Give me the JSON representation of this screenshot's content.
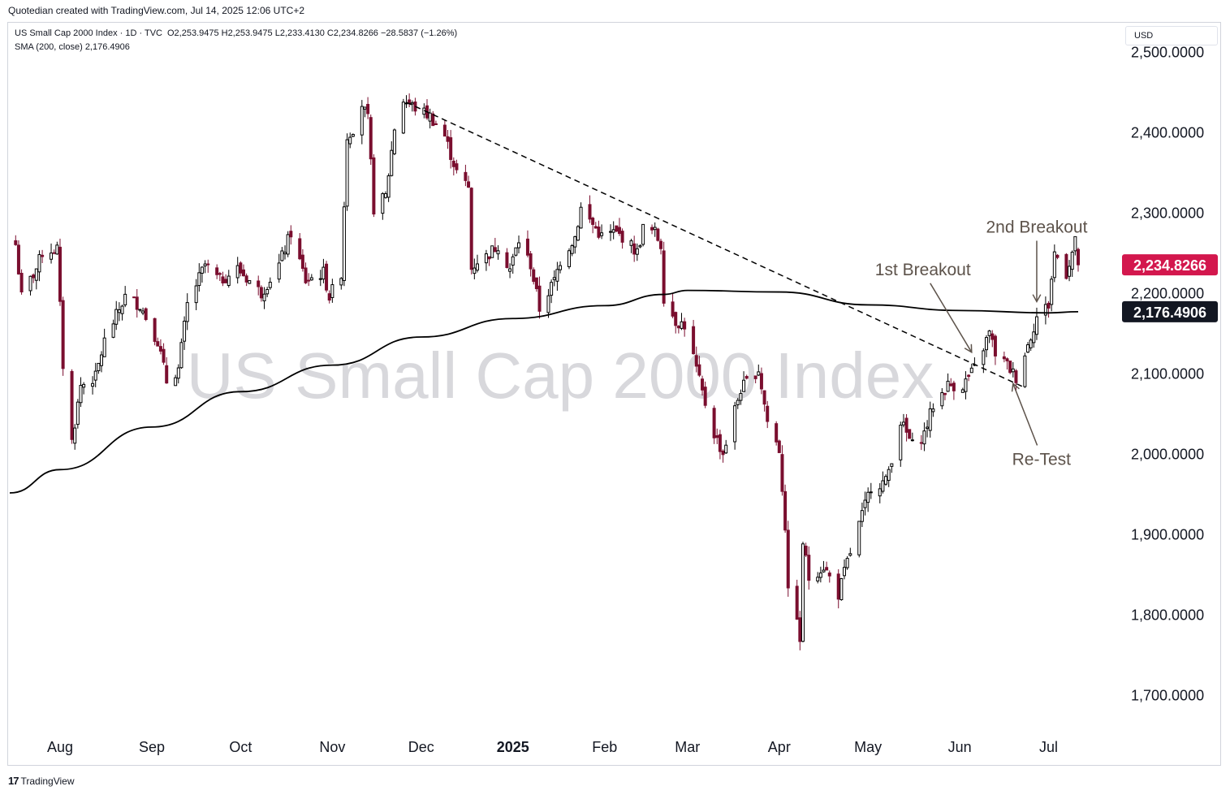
{
  "header": {
    "credit": "Quotedian created with TradingView.com, Jul 14, 2025 12:06 UTC+2"
  },
  "legend": {
    "symbol": "US Small Cap 2000 Index · 1D · TVC",
    "ohlc": "O2,253.9475 H2,253.9475 L2,233.4130 C2,234.8266 −28.5837 (−1.26%)",
    "sma": "SMA (200, close) 2,176.4906"
  },
  "currency": "USD",
  "footer": {
    "logo_mark": "17",
    "logo_text": "TradingView"
  },
  "colors": {
    "bull": "#000000",
    "bear": "#7a0e2f",
    "price_label": "#d3174d",
    "sma_label": "#131722",
    "annotation": "#5d534b",
    "watermark": "#d8d8dc"
  },
  "chart_data": {
    "type": "candlestick",
    "title": "US Small Cap 2000 Index",
    "watermark": "US Small Cap 2000 Index",
    "ylim": [
      1655,
      2535
    ],
    "y_ticks": [
      "2,500.0000",
      "2,400.0000",
      "2,300.0000",
      "2,200.0000",
      "2,100.0000",
      "2,000.0000",
      "1,900.0000",
      "1,800.0000",
      "1,700.0000"
    ],
    "y_tick_values": [
      2500,
      2400,
      2300,
      2200,
      2100,
      2000,
      1900,
      1800,
      1700
    ],
    "x_ticks": [
      "Aug",
      "Sep",
      "Oct",
      "Nov",
      "Dec",
      "2025",
      "Feb",
      "Mar",
      "Apr",
      "May",
      "Jun",
      "Jul"
    ],
    "x_tick_dates": [
      "2024-08-01",
      "2024-09-01",
      "2024-10-01",
      "2024-11-01",
      "2024-12-01",
      "2025-01-01",
      "2025-02-01",
      "2025-03-01",
      "2025-04-01",
      "2025-05-01",
      "2025-06-01",
      "2025-07-01"
    ],
    "close_anchors": [
      [
        "2024-07-17",
        2260
      ],
      [
        "2024-07-19",
        2195
      ],
      [
        "2024-07-24",
        2230
      ],
      [
        "2024-07-26",
        2250
      ],
      [
        "2024-07-31",
        2255
      ],
      [
        "2024-08-02",
        2110
      ],
      [
        "2024-08-05",
        2015
      ],
      [
        "2024-08-08",
        2085
      ],
      [
        "2024-08-13",
        2095
      ],
      [
        "2024-08-16",
        2140
      ],
      [
        "2024-08-23",
        2195
      ],
      [
        "2024-08-28",
        2185
      ],
      [
        "2024-09-03",
        2140
      ],
      [
        "2024-09-06",
        2090
      ],
      [
        "2024-09-10",
        2105
      ],
      [
        "2024-09-13",
        2185
      ],
      [
        "2024-09-19",
        2235
      ],
      [
        "2024-09-24",
        2215
      ],
      [
        "2024-09-30",
        2230
      ],
      [
        "2024-10-04",
        2215
      ],
      [
        "2024-10-08",
        2200
      ],
      [
        "2024-10-14",
        2235
      ],
      [
        "2024-10-18",
        2275
      ],
      [
        "2024-10-23",
        2215
      ],
      [
        "2024-10-29",
        2225
      ],
      [
        "2024-10-31",
        2195
      ],
      [
        "2024-11-04",
        2225
      ],
      [
        "2024-11-06",
        2395
      ],
      [
        "2024-11-08",
        2405
      ],
      [
        "2024-11-11",
        2435
      ],
      [
        "2024-11-13",
        2415
      ],
      [
        "2024-11-15",
        2305
      ],
      [
        "2024-11-19",
        2320
      ],
      [
        "2024-11-22",
        2405
      ],
      [
        "2024-11-25",
        2440
      ],
      [
        "2024-11-29",
        2430
      ],
      [
        "2024-12-04",
        2420
      ],
      [
        "2024-12-09",
        2395
      ],
      [
        "2024-12-13",
        2350
      ],
      [
        "2024-12-17",
        2330
      ],
      [
        "2024-12-18",
        2230
      ],
      [
        "2024-12-20",
        2240
      ],
      [
        "2024-12-23",
        2245
      ],
      [
        "2024-12-27",
        2260
      ],
      [
        "2024-12-31",
        2230
      ],
      [
        "2025-01-03",
        2265
      ],
      [
        "2025-01-07",
        2235
      ],
      [
        "2025-01-10",
        2180
      ],
      [
        "2025-01-15",
        2215
      ],
      [
        "2025-01-17",
        2240
      ],
      [
        "2025-01-22",
        2270
      ],
      [
        "2025-01-24",
        2305
      ],
      [
        "2025-01-28",
        2285
      ],
      [
        "2025-01-31",
        2270
      ],
      [
        "2025-02-04",
        2275
      ],
      [
        "2025-02-07",
        2270
      ],
      [
        "2025-02-12",
        2250
      ],
      [
        "2025-02-14",
        2280
      ],
      [
        "2025-02-18",
        2275
      ],
      [
        "2025-02-20",
        2260
      ],
      [
        "2025-02-21",
        2195
      ],
      [
        "2025-02-25",
        2165
      ],
      [
        "2025-02-28",
        2160
      ],
      [
        "2025-03-03",
        2120
      ],
      [
        "2025-03-06",
        2075
      ],
      [
        "2025-03-10",
        2025
      ],
      [
        "2025-03-13",
        2000
      ],
      [
        "2025-03-17",
        2055
      ],
      [
        "2025-03-19",
        2080
      ],
      [
        "2025-03-25",
        2105
      ],
      [
        "2025-03-28",
        2040
      ],
      [
        "2025-04-01",
        2005
      ],
      [
        "2025-04-03",
        1910
      ],
      [
        "2025-04-04",
        1825
      ],
      [
        "2025-04-07",
        1800
      ],
      [
        "2025-04-08",
        1760
      ],
      [
        "2025-04-09",
        1890
      ],
      [
        "2025-04-11",
        1845
      ],
      [
        "2025-04-16",
        1860
      ],
      [
        "2025-04-21",
        1825
      ],
      [
        "2025-04-24",
        1865
      ],
      [
        "2025-04-30",
        1935
      ],
      [
        "2025-05-02",
        1960
      ],
      [
        "2025-05-07",
        1965
      ],
      [
        "2025-05-12",
        2040
      ],
      [
        "2025-05-16",
        2010
      ],
      [
        "2025-05-20",
        2025
      ],
      [
        "2025-05-23",
        2060
      ],
      [
        "2025-05-28",
        2085
      ],
      [
        "2025-06-02",
        2085
      ],
      [
        "2025-06-06",
        2105
      ],
      [
        "2025-06-11",
        2150
      ],
      [
        "2025-06-13",
        2125
      ],
      [
        "2025-06-17",
        2110
      ],
      [
        "2025-06-20",
        2095
      ],
      [
        "2025-06-24",
        2135
      ],
      [
        "2025-06-27",
        2170
      ],
      [
        "2025-07-01",
        2185
      ],
      [
        "2025-07-03",
        2250
      ],
      [
        "2025-07-07",
        2225
      ],
      [
        "2025-07-10",
        2263
      ],
      [
        "2025-07-11",
        2234.8266
      ]
    ],
    "sma_anchors": [
      [
        "2024-07-15",
        1951
      ],
      [
        "2024-08-01",
        1980
      ],
      [
        "2024-09-01",
        2033
      ],
      [
        "2024-10-01",
        2077
      ],
      [
        "2024-11-01",
        2110
      ],
      [
        "2024-12-01",
        2145
      ],
      [
        "2025-01-01",
        2168
      ],
      [
        "2025-02-01",
        2184
      ],
      [
        "2025-02-21",
        2198
      ],
      [
        "2025-03-01",
        2203
      ],
      [
        "2025-04-01",
        2201
      ],
      [
        "2025-05-01",
        2185
      ],
      [
        "2025-06-01",
        2178
      ],
      [
        "2025-07-01",
        2175
      ],
      [
        "2025-07-11",
        2176.49
      ]
    ],
    "trendline": {
      "start": [
        "2024-11-26",
        2437
      ],
      "end": [
        "2025-06-23",
        2082
      ]
    },
    "last_price_label": "2,234.8266",
    "last_price": 2234.8266,
    "sma_label": "2,176.4906",
    "sma_value": 2176.4906,
    "annotations": [
      {
        "text": "1st Breakout",
        "date": "2025-06-05",
        "value": 2126,
        "dx": -60,
        "dy": -95
      },
      {
        "text": "2nd Breakout",
        "date": "2025-06-27",
        "value": 2189,
        "dx": 0,
        "dy": -85
      },
      {
        "text": "Re-Test",
        "date": "2025-06-19",
        "value": 2087,
        "dx": 35,
        "dy": 100
      }
    ]
  }
}
